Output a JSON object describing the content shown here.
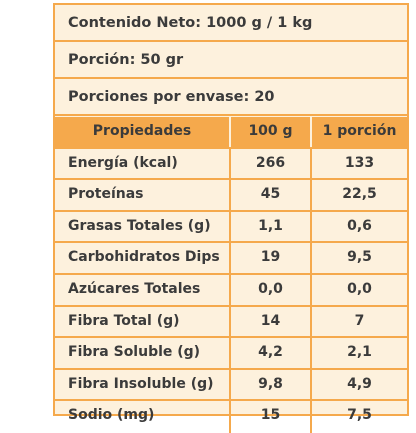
{
  "label": {
    "net_content": "Contenido Neto: 1000 g / 1 kg",
    "portion": "Porción: 50 gr",
    "servings": "Porciones por envase: 20"
  },
  "table": {
    "headers": [
      "Propiedades",
      "100 g",
      "1 porción"
    ],
    "rows": [
      {
        "name": "Energía (kcal)",
        "per100": "266",
        "portion": "133"
      },
      {
        "name": "Proteínas",
        "per100": "45",
        "portion": "22,5"
      },
      {
        "name": "Grasas Totales (g)",
        "per100": "1,1",
        "portion": "0,6"
      },
      {
        "name": "Carbohidratos Dips",
        "per100": "19",
        "portion": "9,5"
      },
      {
        "name": "Azúcares Totales",
        "per100": "0,0",
        "portion": "0,0"
      },
      {
        "name": "Fibra Total (g)",
        "per100": "14",
        "portion": "7"
      },
      {
        "name": "Fibra Soluble (g)",
        "per100": "4,2",
        "portion": "2,1"
      },
      {
        "name": "Fibra Insoluble (g)",
        "per100": "9,8",
        "portion": "4,9"
      },
      {
        "name": "Sodio (mg)",
        "per100": "15",
        "portion": "7,5"
      }
    ]
  },
  "colors": {
    "accent": "#f5a94c",
    "background": "#fdf1dd",
    "text": "#3b3b3b"
  }
}
